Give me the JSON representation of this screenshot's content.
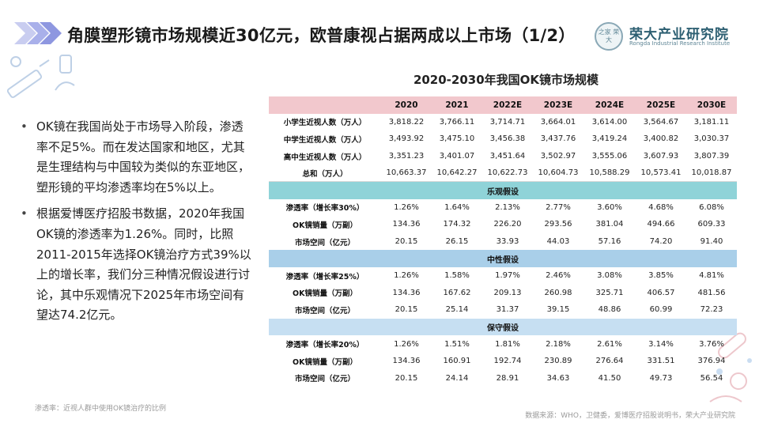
{
  "header": {
    "title": "角膜塑形镜市场规模近30亿元，欧普康视占据两成以上市场（1/2）"
  },
  "logo": {
    "seal_text": "之家 荣大",
    "name_cn": "荣大产业研究院",
    "name_en": "Rongda Industrial Research Institute"
  },
  "bullets": [
    "OK镜在我国尚处于市场导入阶段，渗透率不足5%。而在发达国家和地区，尤其是生理结构与中国较为类似的东亚地区，塑形镜的平均渗透率均在5%以上。",
    "根据爱博医疗招股书数据，2020年我国OK镜的渗透率为1.26%。同时，比照2011-2015年选择OK镜治疗方式39%以上的增长率，我们分三种情况假设进行讨论，其中乐观情况下2025年市场空间有望达74.2亿元。"
  ],
  "footnote": "渗透率：近视人群中使用OK镜治疗的比例",
  "source": "数据来源：WHO，卫健委，爱博医疗招股说明书，荣大产业研究院",
  "chart_data": {
    "type": "table",
    "title": "2020-2030年我国OK镜市场规模",
    "columns": [
      "",
      "2020",
      "2021",
      "2022E",
      "2023E",
      "2024E",
      "2025E",
      "2030E"
    ],
    "base_rows": [
      {
        "label": "小学生近视人数（万人）",
        "values": [
          "3,818.22",
          "3,766.11",
          "3,714.71",
          "3,664.01",
          "3,614.00",
          "3,564.67",
          "3,181.11"
        ]
      },
      {
        "label": "中学生近视人数（万人）",
        "values": [
          "3,493.92",
          "3,475.10",
          "3,456.38",
          "3,437.76",
          "3,419.24",
          "3,400.82",
          "3,030.37"
        ]
      },
      {
        "label": "高中生近视人数（万人）",
        "values": [
          "3,351.23",
          "3,401.07",
          "3,451.64",
          "3,502.97",
          "3,555.06",
          "3,607.93",
          "3,807.39"
        ]
      },
      {
        "label": "总和（万人）",
        "values": [
          "10,663.37",
          "10,642.27",
          "10,622.73",
          "10,604.73",
          "10,588.29",
          "10,573.41",
          "10,018.87"
        ]
      }
    ],
    "scenarios": [
      {
        "name": "乐观假设",
        "rows": [
          {
            "label": "渗透率（增长率30%）",
            "values": [
              "1.26%",
              "1.64%",
              "2.13%",
              "2.77%",
              "3.60%",
              "4.68%",
              "6.08%"
            ]
          },
          {
            "label": "OK镜销量（万副）",
            "values": [
              "134.36",
              "174.32",
              "226.20",
              "293.56",
              "381.04",
              "494.66",
              "609.33"
            ]
          },
          {
            "label": "市场空间（亿元）",
            "values": [
              "20.15",
              "26.15",
              "33.93",
              "44.03",
              "57.16",
              "74.20",
              "91.40"
            ]
          }
        ]
      },
      {
        "name": "中性假设",
        "rows": [
          {
            "label": "渗透率（增长率25%）",
            "values": [
              "1.26%",
              "1.58%",
              "1.97%",
              "2.46%",
              "3.08%",
              "3.85%",
              "4.81%"
            ]
          },
          {
            "label": "OK镜销量（万副）",
            "values": [
              "134.36",
              "167.62",
              "209.13",
              "260.98",
              "325.71",
              "406.57",
              "481.56"
            ]
          },
          {
            "label": "市场空间（亿元）",
            "values": [
              "20.15",
              "25.14",
              "31.37",
              "39.15",
              "48.86",
              "60.99",
              "72.23"
            ]
          }
        ]
      },
      {
        "name": "保守假设",
        "rows": [
          {
            "label": "渗透率（增长率20%）",
            "values": [
              "1.26%",
              "1.51%",
              "1.81%",
              "2.18%",
              "2.61%",
              "3.14%",
              "3.76%"
            ]
          },
          {
            "label": "OK镜销量（万副）",
            "values": [
              "134.36",
              "160.91",
              "192.74",
              "230.89",
              "276.64",
              "331.51",
              "376.94"
            ]
          },
          {
            "label": "市场空间（亿元）",
            "values": [
              "20.15",
              "24.14",
              "28.91",
              "34.63",
              "41.50",
              "49.73",
              "56.54"
            ]
          }
        ]
      }
    ]
  }
}
